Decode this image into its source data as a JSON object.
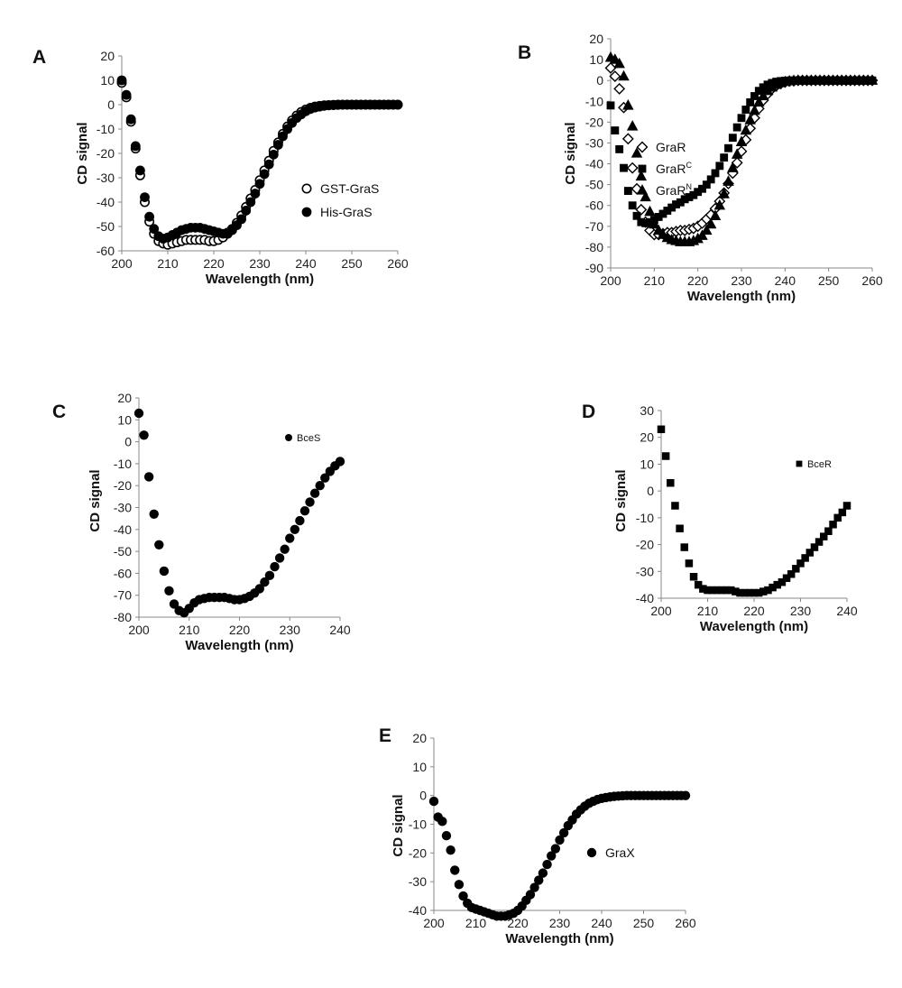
{
  "chart_data": [
    {
      "panel": "A",
      "type": "scatter",
      "xlabel": "Wavelength (nm)",
      "ylabel": "CD signal",
      "xlim": [
        200,
        260
      ],
      "ylim": [
        -60,
        20
      ],
      "xticks": [
        200,
        210,
        220,
        230,
        240,
        250,
        260
      ],
      "yticks": [
        -60,
        -50,
        -40,
        -30,
        -20,
        -10,
        0,
        10,
        20
      ],
      "legend_position": "center-right",
      "series": [
        {
          "name": "GST-GraS",
          "marker": "circle-open",
          "x": [
            200,
            201,
            202,
            203,
            204,
            205,
            206,
            207,
            208,
            209,
            210,
            211,
            212,
            213,
            214,
            215,
            216,
            217,
            218,
            219,
            220,
            221,
            222,
            223,
            224,
            225,
            226,
            227,
            228,
            229,
            230,
            231,
            232,
            233,
            234,
            235,
            236,
            237,
            238,
            239,
            240,
            241,
            242,
            243,
            244,
            245,
            246,
            247,
            248,
            249,
            250,
            251,
            252,
            253,
            254,
            255,
            256,
            257,
            258,
            259,
            260
          ],
          "y": [
            9,
            3,
            -7,
            -18,
            -29,
            -40,
            -48,
            -53,
            -56,
            -57,
            -57.5,
            -57,
            -56.5,
            -56,
            -55.5,
            -55.5,
            -55.5,
            -55.5,
            -55.5,
            -56,
            -56,
            -55.5,
            -54.5,
            -53,
            -51,
            -48.5,
            -45.5,
            -42,
            -38.5,
            -35,
            -31,
            -27,
            -23,
            -19,
            -15.5,
            -12,
            -9,
            -6.5,
            -4.5,
            -3,
            -2,
            -1.3,
            -0.8,
            -0.5,
            -0.3,
            -0.2,
            -0.1,
            0,
            0,
            0,
            0,
            0,
            0,
            0,
            0,
            0,
            0,
            0,
            0,
            0,
            0
          ]
        },
        {
          "name": "His-GraS",
          "marker": "circle-filled",
          "x": [
            200,
            201,
            202,
            203,
            204,
            205,
            206,
            207,
            208,
            209,
            210,
            211,
            212,
            213,
            214,
            215,
            216,
            217,
            218,
            219,
            220,
            221,
            222,
            223,
            224,
            225,
            226,
            227,
            228,
            229,
            230,
            231,
            232,
            233,
            234,
            235,
            236,
            237,
            238,
            239,
            240,
            241,
            242,
            243,
            244,
            245,
            246,
            247,
            248,
            249,
            250,
            251,
            252,
            253,
            254,
            255,
            256,
            257,
            258,
            259,
            260
          ],
          "y": [
            10,
            4,
            -6,
            -17,
            -27,
            -38,
            -46,
            -51,
            -54,
            -55,
            -54.5,
            -53.5,
            -52.5,
            -51.5,
            -51,
            -50.5,
            -50.5,
            -50.5,
            -51,
            -51.5,
            -52,
            -52.5,
            -53,
            -52.5,
            -51.5,
            -49.5,
            -47,
            -43.5,
            -40,
            -36.5,
            -32.5,
            -28.5,
            -24.5,
            -20.5,
            -16.5,
            -13,
            -10,
            -7.5,
            -5.5,
            -4,
            -2.7,
            -1.8,
            -1.2,
            -0.8,
            -0.5,
            -0.3,
            -0.2,
            -0.1,
            0,
            0,
            0,
            0,
            0,
            0,
            0,
            0,
            0,
            0,
            0,
            0,
            0
          ]
        }
      ]
    },
    {
      "panel": "B",
      "type": "scatter",
      "xlabel": "Wavelength (nm)",
      "ylabel": "CD signal",
      "xlim": [
        200,
        260
      ],
      "ylim": [
        -90,
        20
      ],
      "xticks": [
        200,
        210,
        220,
        230,
        240,
        250,
        260
      ],
      "yticks": [
        -90,
        -80,
        -70,
        -60,
        -50,
        -40,
        -30,
        -20,
        -10,
        0,
        10,
        20
      ],
      "legend_position": "right",
      "series": [
        {
          "name": "GraR",
          "marker": "diamond-open",
          "x": [
            200,
            201,
            202,
            203,
            204,
            205,
            206,
            207,
            208,
            209,
            210,
            211,
            212,
            213,
            214,
            215,
            216,
            217,
            218,
            219,
            220,
            221,
            222,
            223,
            224,
            225,
            226,
            227,
            228,
            229,
            230,
            231,
            232,
            233,
            234,
            235,
            236,
            237,
            238,
            239,
            240,
            241,
            242,
            243,
            244,
            245,
            246,
            247,
            248,
            249,
            250,
            251,
            252,
            253,
            254,
            255,
            256,
            257,
            258,
            259,
            260
          ],
          "y": [
            6,
            2,
            -4,
            -13,
            -28,
            -42,
            -52,
            -62,
            -68,
            -72,
            -74,
            -74,
            -73.5,
            -73,
            -73,
            -72.5,
            -72,
            -72,
            -71.5,
            -71,
            -70,
            -68.5,
            -66.5,
            -64.5,
            -61.5,
            -58,
            -54,
            -49.5,
            -44.5,
            -39.5,
            -34,
            -28.5,
            -23,
            -18,
            -13.5,
            -9.5,
            -6.5,
            -4,
            -2.5,
            -1.5,
            -0.8,
            -0.4,
            -0.2,
            0,
            0,
            0,
            0,
            0,
            0,
            0,
            0,
            0,
            0,
            0,
            0,
            0,
            0,
            0,
            0,
            0,
            0
          ]
        },
        {
          "name": "GraR",
          "name_superscript": "C",
          "marker": "square-filled",
          "x": [
            200,
            201,
            202,
            203,
            204,
            205,
            206,
            207,
            208,
            209,
            210,
            211,
            212,
            213,
            214,
            215,
            216,
            217,
            218,
            219,
            220,
            221,
            222,
            223,
            224,
            225,
            226,
            227,
            228,
            229,
            230,
            231,
            232,
            233,
            234,
            235,
            236,
            237,
            238,
            239,
            240,
            241,
            242,
            243,
            244,
            245,
            246,
            247,
            248,
            249,
            250,
            251,
            252,
            253,
            254,
            255,
            256,
            257,
            258,
            259,
            260
          ],
          "y": [
            -12,
            -24,
            -33,
            -42,
            -53,
            -60,
            -65,
            -68,
            -68.5,
            -68,
            -67,
            -65.5,
            -64,
            -62.5,
            -61,
            -59.5,
            -58.5,
            -57,
            -56,
            -55,
            -53.5,
            -52,
            -50,
            -47.5,
            -44.5,
            -41,
            -37,
            -32.5,
            -27.5,
            -22.5,
            -18,
            -14,
            -10.5,
            -7.5,
            -5,
            -3.3,
            -2,
            -1.2,
            -0.6,
            -0.3,
            -0.1,
            0,
            0,
            0,
            0,
            0,
            0,
            0,
            0,
            0,
            0,
            0,
            0,
            0,
            0,
            0,
            0,
            0,
            0,
            0,
            0
          ]
        },
        {
          "name": "GraR",
          "name_superscript": "N",
          "marker": "triangle-filled",
          "x": [
            200,
            201,
            202,
            203,
            204,
            205,
            206,
            207,
            208,
            209,
            210,
            211,
            212,
            213,
            214,
            215,
            216,
            217,
            218,
            219,
            220,
            221,
            222,
            223,
            224,
            225,
            226,
            227,
            228,
            229,
            230,
            231,
            232,
            233,
            234,
            235,
            236,
            237,
            238,
            239,
            240,
            241,
            242,
            243,
            244,
            245,
            246,
            247,
            248,
            249,
            250,
            251,
            252,
            253,
            254,
            255,
            256,
            257,
            258,
            259,
            260
          ],
          "y": [
            11,
            10,
            8,
            2,
            -12,
            -22,
            -35,
            -46,
            -56,
            -63,
            -69,
            -72,
            -74,
            -75.5,
            -76.5,
            -77,
            -77.5,
            -77.5,
            -77.5,
            -77,
            -76,
            -74.5,
            -72,
            -69,
            -65,
            -60,
            -54.5,
            -48.5,
            -42,
            -35.5,
            -29.5,
            -24,
            -19,
            -14.5,
            -10.5,
            -7.5,
            -5,
            -3.3,
            -2,
            -1.2,
            -0.6,
            -0.3,
            -0.1,
            0,
            0,
            0,
            0,
            0,
            0,
            0,
            0,
            0,
            0,
            0,
            0,
            0,
            0,
            0,
            0,
            0,
            0
          ]
        }
      ]
    },
    {
      "panel": "C",
      "type": "scatter",
      "xlabel": "Wavelength (nm)",
      "ylabel": "CD signal",
      "xlim": [
        200,
        240
      ],
      "ylim": [
        -80,
        20
      ],
      "xticks": [
        200,
        210,
        220,
        230,
        240
      ],
      "yticks": [
        -80,
        -70,
        -60,
        -50,
        -40,
        -30,
        -20,
        -10,
        0,
        10,
        20
      ],
      "legend_position": "top-right",
      "series": [
        {
          "name": "BceS",
          "marker": "circle-filled",
          "x": [
            200,
            201,
            202,
            203,
            204,
            205,
            206,
            207,
            208,
            209,
            210,
            211,
            212,
            213,
            214,
            215,
            216,
            217,
            218,
            219,
            220,
            221,
            222,
            223,
            224,
            225,
            226,
            227,
            228,
            229,
            230,
            231,
            232,
            233,
            234,
            235,
            236,
            237,
            238,
            239,
            240
          ],
          "y": [
            13,
            3,
            -16,
            -33,
            -47,
            -59,
            -68,
            -74,
            -77,
            -78,
            -76,
            -73.5,
            -72,
            -71.5,
            -71,
            -71,
            -71,
            -71,
            -71.5,
            -72,
            -72,
            -71.5,
            -70.5,
            -69,
            -67,
            -64,
            -61,
            -57,
            -53,
            -49,
            -44,
            -40,
            -36,
            -31.5,
            -27.5,
            -23.5,
            -20,
            -16.5,
            -13.5,
            -11,
            -9
          ]
        }
      ]
    },
    {
      "panel": "D",
      "type": "scatter",
      "xlabel": "Wavelength (nm)",
      "ylabel": "CD signal",
      "xlim": [
        200,
        240
      ],
      "ylim": [
        -40,
        30
      ],
      "xticks": [
        200,
        210,
        220,
        230,
        240
      ],
      "yticks": [
        -40,
        -30,
        -20,
        -10,
        0,
        10,
        20,
        30
      ],
      "legend_position": "top-right",
      "series": [
        {
          "name": "BceR",
          "marker": "square-filled",
          "x": [
            200,
            201,
            202,
            203,
            204,
            205,
            206,
            207,
            208,
            209,
            210,
            211,
            212,
            213,
            214,
            215,
            216,
            217,
            218,
            219,
            220,
            221,
            222,
            223,
            224,
            225,
            226,
            227,
            228,
            229,
            230,
            231,
            232,
            233,
            234,
            235,
            236,
            237,
            238,
            239,
            240
          ],
          "y": [
            23,
            13,
            3,
            -5.5,
            -14,
            -21,
            -27,
            -32,
            -35,
            -36.5,
            -37,
            -37,
            -37,
            -37,
            -37,
            -37,
            -37.5,
            -38,
            -38,
            -38,
            -38,
            -38,
            -37.5,
            -37,
            -36,
            -35,
            -34,
            -32.5,
            -31,
            -29,
            -27,
            -25,
            -23,
            -21,
            -19,
            -17,
            -15,
            -12.5,
            -10,
            -8,
            -5.5
          ]
        }
      ]
    },
    {
      "panel": "E",
      "type": "scatter",
      "xlabel": "Wavelength (nm)",
      "ylabel": "CD signal",
      "xlim": [
        200,
        260
      ],
      "ylim": [
        -40,
        20
      ],
      "xticks": [
        200,
        210,
        220,
        230,
        240,
        250,
        260
      ],
      "yticks": [
        -40,
        -30,
        -20,
        -10,
        0,
        10,
        20
      ],
      "legend_position": "right",
      "series": [
        {
          "name": "GraX",
          "marker": "circle-filled",
          "x": [
            200,
            201,
            202,
            203,
            204,
            205,
            206,
            207,
            208,
            209,
            210,
            211,
            212,
            213,
            214,
            215,
            216,
            217,
            218,
            219,
            220,
            221,
            222,
            223,
            224,
            225,
            226,
            227,
            228,
            229,
            230,
            231,
            232,
            233,
            234,
            235,
            236,
            237,
            238,
            239,
            240,
            241,
            242,
            243,
            244,
            245,
            246,
            247,
            248,
            249,
            250,
            251,
            252,
            253,
            254,
            255,
            256,
            257,
            258,
            259,
            260
          ],
          "y": [
            -2,
            -7.5,
            -9,
            -14,
            -19,
            -26,
            -31,
            -35,
            -37.5,
            -39,
            -39.5,
            -40,
            -40.5,
            -41,
            -41.5,
            -42,
            -42,
            -42,
            -41.5,
            -41,
            -40,
            -38.5,
            -36.5,
            -34.5,
            -32,
            -29.5,
            -27,
            -24,
            -21,
            -18.5,
            -15.5,
            -13,
            -10.5,
            -8.5,
            -6.5,
            -5,
            -3.7,
            -2.7,
            -2,
            -1.4,
            -1,
            -0.7,
            -0.5,
            -0.3,
            -0.2,
            -0.1,
            0,
            0,
            0,
            0,
            0,
            0,
            0,
            0,
            0,
            0,
            0,
            0,
            0,
            0,
            0
          ]
        }
      ]
    }
  ]
}
